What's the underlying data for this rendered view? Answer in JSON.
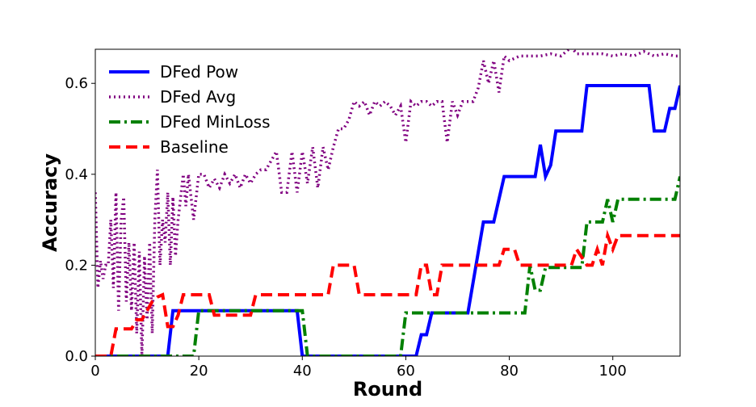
{
  "chart_data": {
    "type": "line",
    "title": "",
    "xlabel": "Round",
    "ylabel": "Accuracy",
    "xlim": [
      0,
      113
    ],
    "ylim": [
      0,
      0.675
    ],
    "xticks": [
      0,
      20,
      40,
      60,
      80,
      100
    ],
    "yticks": [
      0.0,
      0.2,
      0.4,
      0.6
    ],
    "xtick_labels": [
      "0",
      "20",
      "40",
      "60",
      "80",
      "100"
    ],
    "ytick_labels": [
      "0.0",
      "0.2",
      "0.4",
      "0.6"
    ],
    "grid": false,
    "legend_position": "top-left",
    "series": [
      {
        "name": "DFed Pow",
        "color": "#0000ff",
        "style": "solid",
        "x": [
          0,
          14,
          15,
          39,
          40,
          62,
          63,
          64,
          65,
          72,
          75,
          77,
          79,
          85,
          86,
          87,
          88,
          89,
          94,
          95,
          107,
          108,
          110,
          111,
          112,
          113
        ],
        "y": [
          0,
          0,
          0.1,
          0.1,
          0,
          0,
          0.047,
          0.047,
          0.095,
          0.095,
          0.295,
          0.295,
          0.395,
          0.395,
          0.465,
          0.395,
          0.42,
          0.495,
          0.495,
          0.595,
          0.595,
          0.495,
          0.495,
          0.545,
          0.545,
          0.595
        ]
      },
      {
        "name": "DFed Avg",
        "color": "#800080",
        "style": "dotted",
        "x": [
          0,
          0.5,
          1,
          1.5,
          2,
          2.5,
          3,
          3.5,
          4,
          4.5,
          5,
          5.5,
          6,
          6.5,
          7,
          7.5,
          8,
          8.5,
          9,
          9.5,
          10,
          10.5,
          11,
          11.5,
          12,
          12.5,
          13,
          13.5,
          14,
          14.5,
          15,
          15.5,
          16,
          16.5,
          17,
          17.5,
          18,
          19,
          20,
          21,
          22,
          23,
          24,
          25,
          26,
          27,
          28,
          29,
          30,
          31,
          32,
          33,
          34,
          35,
          36,
          37,
          38,
          39,
          40,
          41,
          42,
          43,
          44,
          45,
          46,
          47,
          48,
          49,
          50,
          51,
          52,
          53,
          54,
          55,
          56,
          57,
          58,
          59,
          60,
          61,
          62,
          63,
          64,
          65,
          66,
          67,
          68,
          69,
          70,
          71,
          72,
          73,
          74,
          75,
          76,
          77,
          78,
          79,
          80,
          82,
          84,
          86,
          88,
          90,
          91,
          92,
          93,
          94,
          96,
          98,
          100,
          102,
          104,
          106,
          108,
          110,
          112,
          113
        ],
        "y": [
          0.36,
          0.15,
          0.21,
          0.17,
          0.2,
          0.2,
          0.3,
          0.15,
          0.36,
          0.1,
          0.3,
          0.35,
          0.12,
          0.25,
          0.1,
          0.25,
          0.05,
          0.23,
          0.0,
          0.22,
          0.08,
          0.25,
          0.05,
          0.3,
          0.41,
          0.2,
          0.3,
          0.25,
          0.36,
          0.2,
          0.35,
          0.22,
          0.3,
          0.35,
          0.4,
          0.33,
          0.4,
          0.3,
          0.4,
          0.4,
          0.37,
          0.39,
          0.37,
          0.4,
          0.38,
          0.4,
          0.37,
          0.4,
          0.38,
          0.4,
          0.41,
          0.41,
          0.43,
          0.45,
          0.36,
          0.36,
          0.45,
          0.36,
          0.45,
          0.38,
          0.46,
          0.37,
          0.46,
          0.41,
          0.46,
          0.5,
          0.5,
          0.52,
          0.56,
          0.55,
          0.56,
          0.53,
          0.56,
          0.55,
          0.56,
          0.55,
          0.53,
          0.55,
          0.47,
          0.56,
          0.55,
          0.56,
          0.56,
          0.55,
          0.56,
          0.56,
          0.47,
          0.56,
          0.53,
          0.56,
          0.56,
          0.56,
          0.59,
          0.65,
          0.6,
          0.65,
          0.58,
          0.66,
          0.65,
          0.66,
          0.66,
          0.66,
          0.665,
          0.66,
          0.67,
          0.68,
          0.665,
          0.665,
          0.665,
          0.665,
          0.66,
          0.665,
          0.66,
          0.67,
          0.66,
          0.665,
          0.66,
          0.66
        ]
      },
      {
        "name": "DFed MinLoss",
        "color": "#008000",
        "style": "dashdot",
        "x": [
          0,
          19,
          20,
          40,
          41,
          59,
          60,
          72,
          83,
          84,
          85,
          86,
          87,
          88,
          94,
          95,
          98,
          99,
          100,
          101,
          112,
          113
        ],
        "y": [
          0,
          0,
          0.1,
          0.1,
          0,
          0,
          0.095,
          0.095,
          0.095,
          0.2,
          0.145,
          0.145,
          0.195,
          0.195,
          0.195,
          0.295,
          0.295,
          0.345,
          0.295,
          0.345,
          0.345,
          0.395
        ]
      },
      {
        "name": "Baseline",
        "color": "#ff0000",
        "style": "dashed",
        "x": [
          0,
          3,
          4,
          7,
          8,
          9,
          10,
          11,
          12,
          13,
          14,
          15,
          16,
          17,
          22,
          23,
          24,
          30,
          31,
          45,
          46,
          50,
          51,
          62,
          63,
          64,
          65,
          66,
          67,
          70,
          71,
          78,
          79,
          81,
          82,
          88,
          89,
          92,
          93,
          95,
          96,
          97,
          98,
          99,
          100,
          101,
          113
        ],
        "y": [
          0,
          0,
          0.06,
          0.06,
          0.08,
          0.08,
          0.1,
          0.12,
          0.13,
          0.135,
          0.065,
          0.065,
          0.09,
          0.135,
          0.135,
          0.09,
          0.09,
          0.09,
          0.135,
          0.135,
          0.2,
          0.2,
          0.135,
          0.135,
          0.2,
          0.2,
          0.135,
          0.135,
          0.2,
          0.2,
          0.2,
          0.2,
          0.235,
          0.235,
          0.2,
          0.2,
          0.2,
          0.2,
          0.235,
          0.2,
          0.2,
          0.235,
          0.2,
          0.265,
          0.235,
          0.265,
          0.265
        ]
      }
    ]
  }
}
